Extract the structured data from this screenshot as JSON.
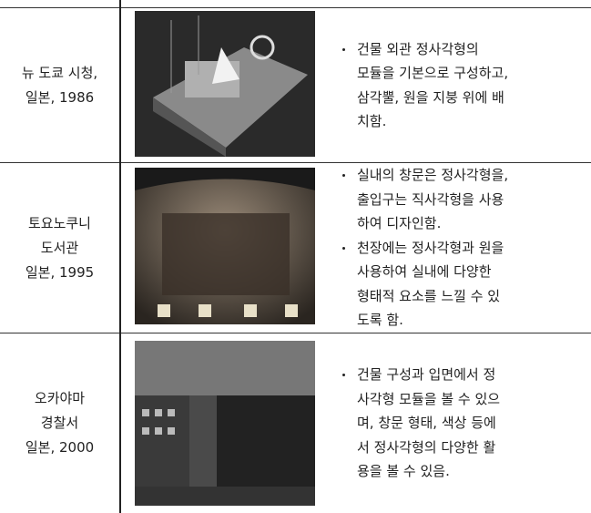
{
  "table": {
    "rows": [
      {
        "name_lines": [
          "뉴 도쿄 시청,",
          "일본, 1986"
        ],
        "bullets": [
          [
            "건물 외관 정사각형의",
            "모듈을 기본으로 구성하고,",
            "삼각뿔, 원을 지붕 위에 배",
            "치함."
          ]
        ]
      },
      {
        "name_lines": [
          "토요노쿠니",
          "도서관",
          "일본, 1995"
        ],
        "bullets": [
          [
            "실내의 창문은 정사각형을,",
            "출입구는 직사각형을 사용",
            "하여 디자인함."
          ],
          [
            "천장에는 정사각형과 원을",
            "사용하여 실내에 다양한",
            "형태적 요소를 느낄 수 있",
            "도록 함."
          ]
        ]
      },
      {
        "name_lines": [
          "오카야마",
          "경찰서",
          "일본, 2000"
        ],
        "bullets": [
          [
            "건물 구성과 입면에서 정",
            "사각형 모듈을 볼 수 있으",
            "며, 창문 형태, 색상 등에",
            "서 정사각형의 다양한 활",
            "용을 볼 수 있음."
          ]
        ]
      }
    ]
  }
}
